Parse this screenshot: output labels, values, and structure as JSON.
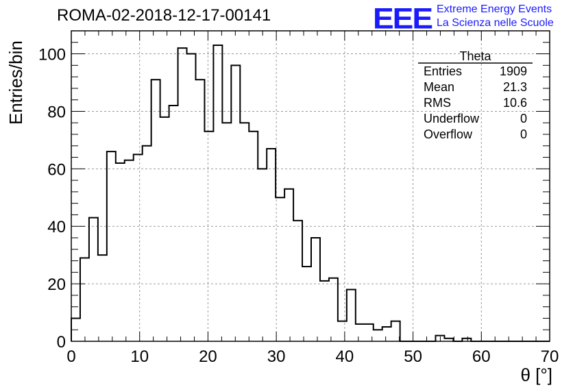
{
  "title": "ROMA-02-2018-12-17-00141",
  "logo": {
    "mark": "EEE",
    "line1": "Extreme Energy Events",
    "line2": "La Scienza nelle Scuole",
    "color": "#1a1aff"
  },
  "stats_box": {
    "name": "Theta",
    "rows": [
      {
        "label": "Entries",
        "value": "1909"
      },
      {
        "label": "Mean",
        "value": "21.3"
      },
      {
        "label": "RMS",
        "value": "10.6"
      },
      {
        "label": "Underflow",
        "value": "0"
      },
      {
        "label": "Overflow",
        "value": "0"
      }
    ]
  },
  "chart_data": {
    "type": "bar",
    "subtype": "histogram",
    "title": "ROMA-02-2018-12-17-00141",
    "xlabel": "θ [°]",
    "ylabel": "Entries/bin",
    "xlim": [
      0,
      70
    ],
    "ylim": [
      0,
      108
    ],
    "bin_width": 1.3,
    "x_ticks": [
      0,
      10,
      20,
      30,
      40,
      50,
      60,
      70
    ],
    "y_ticks": [
      0,
      20,
      40,
      60,
      80,
      100
    ],
    "grid": true,
    "counts": [
      8,
      29,
      43,
      30,
      66,
      62,
      63,
      65,
      68,
      91,
      78,
      82,
      102,
      100,
      91,
      73,
      103,
      76,
      96,
      76,
      73,
      60,
      67,
      50,
      53,
      42,
      26,
      36,
      21,
      22,
      7,
      18,
      6,
      6,
      4,
      5,
      7,
      0,
      0,
      0,
      0,
      2,
      1,
      0,
      1,
      0,
      0,
      0,
      0,
      0,
      0,
      0,
      0,
      0
    ]
  }
}
